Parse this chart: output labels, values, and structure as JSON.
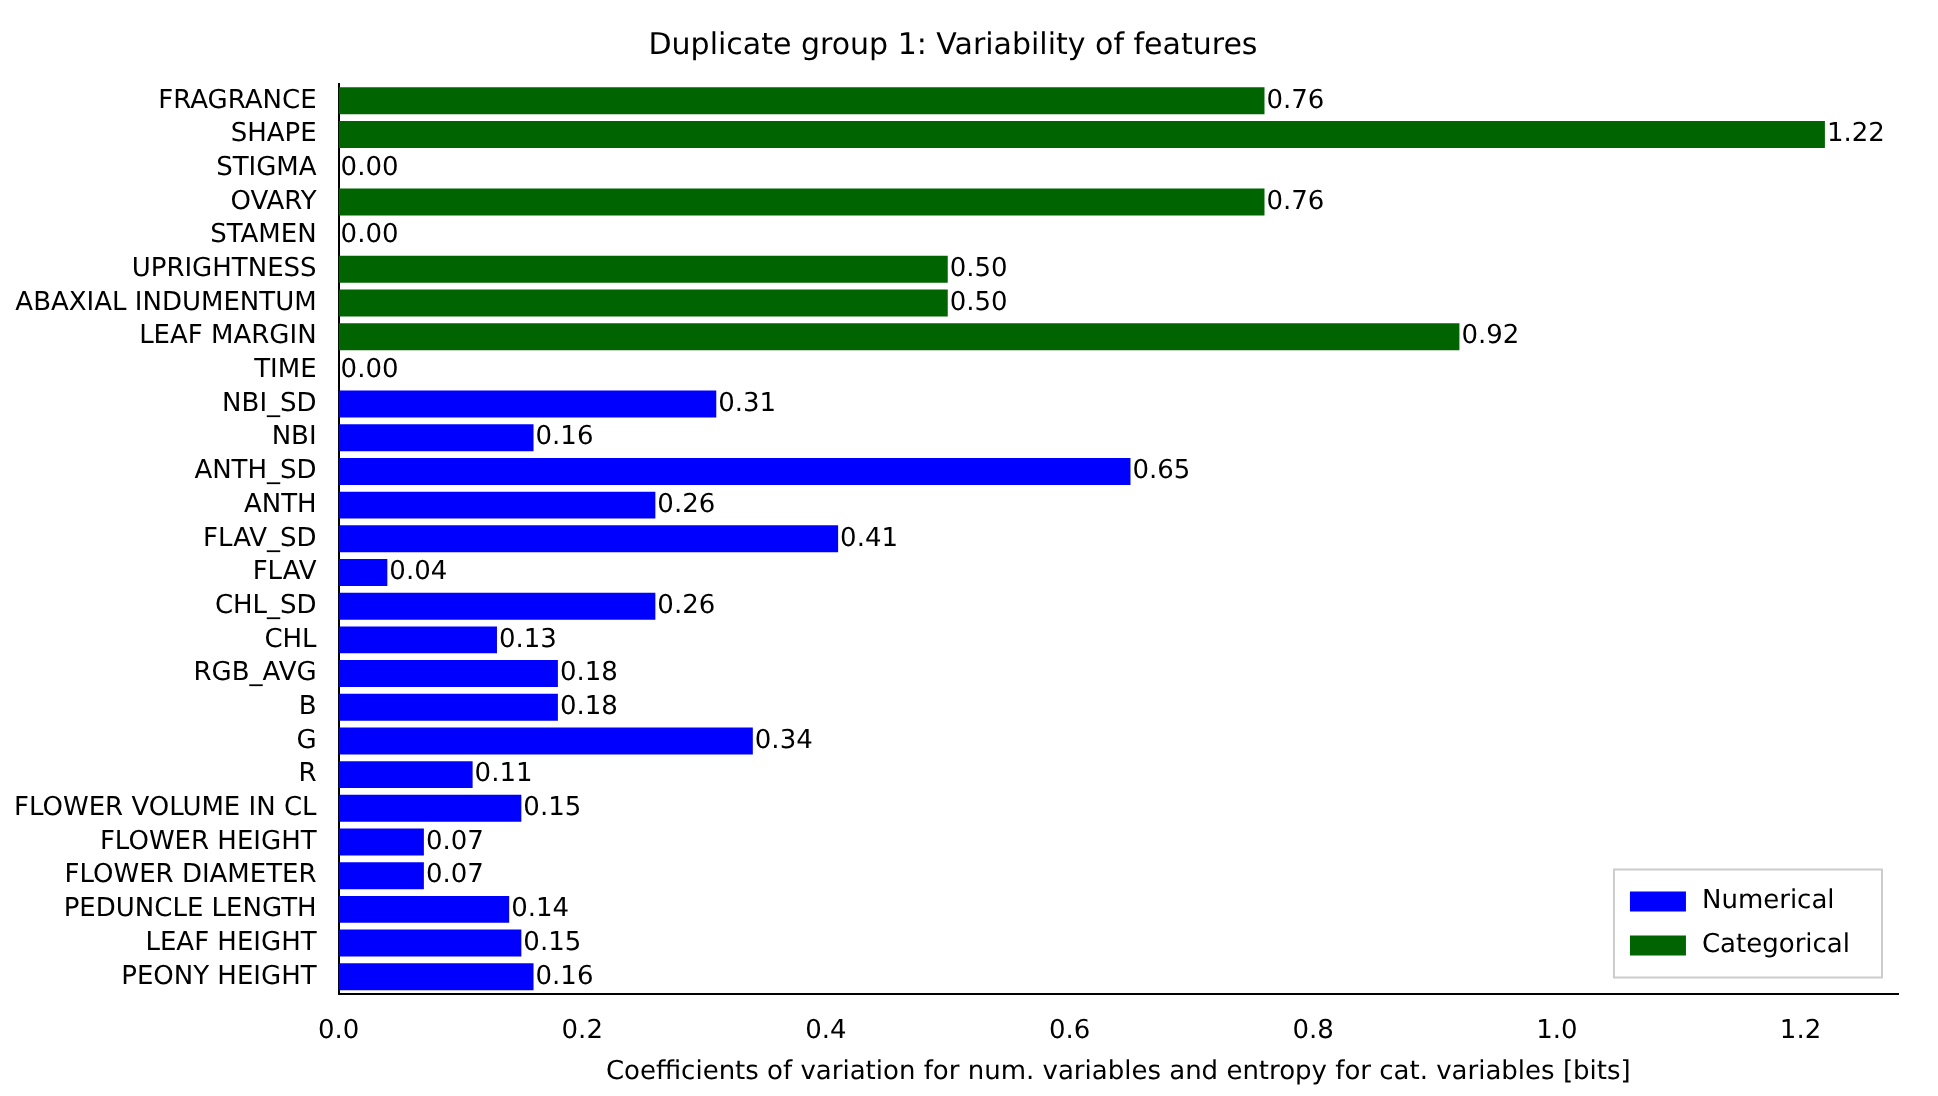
{
  "chart_data": {
    "type": "bar",
    "orientation": "horizontal",
    "title": "Duplicate group 1: Variability of features",
    "xlabel": "Coefficients of variation for num. variables and entropy for cat. variables [bits]",
    "categories": [
      "FRAGRANCE",
      "SHAPE",
      "STIGMA",
      "OVARY",
      "STAMEN",
      "UPRIGHTNESS",
      "ABAXIAL INDUMENTUM",
      "LEAF MARGIN",
      "TIME",
      "NBI_SD",
      "NBI",
      "ANTH_SD",
      "ANTH",
      "FLAV_SD",
      "FLAV",
      "CHL_SD",
      "CHL",
      "RGB_AVG",
      "B",
      "G",
      "R",
      "FLOWER VOLUME IN CL",
      "FLOWER HEIGHT",
      "FLOWER DIAMETER",
      "PEDUNCLE LENGTH",
      "LEAF HEIGHT",
      "PEONY HEIGHT"
    ],
    "series": [
      {
        "name": "Numerical",
        "color": "#0000ff",
        "values": [
          null,
          null,
          null,
          null,
          null,
          null,
          null,
          null,
          null,
          0.31,
          0.16,
          0.65,
          0.26,
          0.41,
          0.04,
          0.26,
          0.13,
          0.18,
          0.18,
          0.34,
          0.11,
          0.15,
          0.07,
          0.07,
          0.14,
          0.15,
          0.16
        ],
        "value_labels": [
          null,
          null,
          null,
          null,
          null,
          null,
          null,
          null,
          null,
          "0.31",
          "0.16",
          "0.65",
          "0.26",
          "0.41",
          "0.04",
          "0.26",
          "0.13",
          "0.18",
          "0.18",
          "0.34",
          "0.11",
          "0.15",
          "0.07",
          "0.07",
          "0.14",
          "0.15",
          "0.16"
        ]
      },
      {
        "name": "Categorical",
        "color": "#006400",
        "values": [
          0.76,
          1.22,
          0,
          0.76,
          0,
          0.5,
          0.5,
          0.92,
          0,
          null,
          null,
          null,
          null,
          null,
          null,
          null,
          null,
          null,
          null,
          null,
          null,
          null,
          null,
          null,
          null,
          null,
          null
        ],
        "value_labels": [
          "0.76",
          "1.22",
          "0.00",
          "0.76",
          "0.00",
          "0.50",
          "0.50",
          "0.92",
          "0.00",
          null,
          null,
          null,
          null,
          null,
          null,
          null,
          null,
          null,
          null,
          null,
          null,
          null,
          null,
          null,
          null,
          null,
          null
        ]
      }
    ],
    "xlim": [
      0,
      1.28
    ],
    "xticks": [
      {
        "value": 0,
        "label": "0.0"
      },
      0.2,
      0.4,
      0.6,
      0.8,
      {
        "value": 1,
        "label": "1.0"
      },
      1.2
    ],
    "grid": false,
    "legend": "bottom right"
  }
}
